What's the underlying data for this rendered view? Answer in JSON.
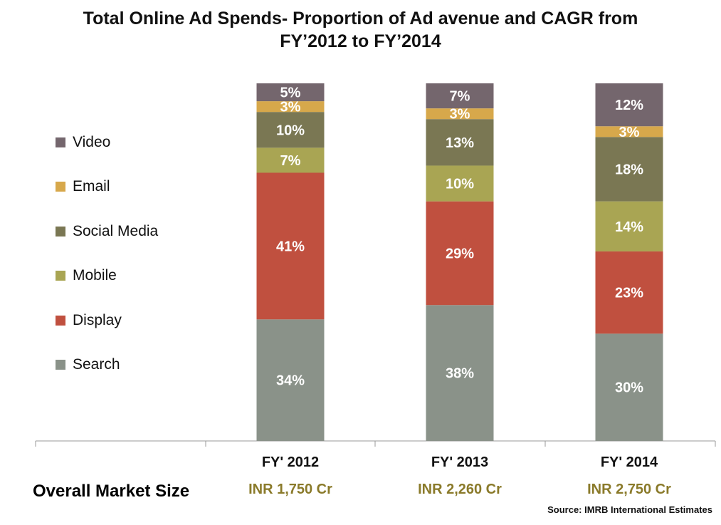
{
  "title_line1": "Total Online Ad Spends- Proportion of Ad avenue  and CAGR from",
  "title_line2": "FY’2012 to FY’2014",
  "chart_data": {
    "type": "bar",
    "stacked": true,
    "categories": [
      "FY' 2012",
      "FY' 2013",
      "FY' 2014"
    ],
    "unit": "%",
    "ylim": [
      0,
      100
    ],
    "grid": false,
    "legend_position": "left",
    "series": [
      {
        "name": "Search",
        "color": "#8a9289",
        "values": [
          34,
          38,
          30
        ],
        "labels": [
          "34%",
          "38%",
          "30%"
        ]
      },
      {
        "name": "Display",
        "color": "#c0503f",
        "values": [
          41,
          29,
          23
        ],
        "labels": [
          "41%",
          "29%",
          "23%"
        ]
      },
      {
        "name": "Mobile",
        "color": "#a9a553",
        "values": [
          7,
          10,
          14
        ],
        "labels": [
          "7%",
          "10%",
          "14%"
        ]
      },
      {
        "name": "Social Media",
        "color": "#7a7753",
        "values": [
          10,
          13,
          18
        ],
        "labels": [
          "10%",
          "13%",
          "18%"
        ]
      },
      {
        "name": "Email",
        "color": "#d7a84b",
        "values": [
          3,
          3,
          3
        ],
        "labels": [
          "3%",
          "3%",
          "3%"
        ]
      },
      {
        "name": "Video",
        "color": "#74666d",
        "values": [
          5,
          7,
          12
        ],
        "labels": [
          "5%",
          "7%",
          "12%"
        ]
      }
    ]
  },
  "legend_order": [
    "Video",
    "Email",
    "Social Media",
    "Mobile",
    "Display",
    "Search"
  ],
  "market": {
    "label": "Overall Market Size",
    "values": [
      "INR 1,750 Cr",
      "INR 2,260 Cr",
      "INR 2,750 Cr"
    ],
    "color": "#8a7a2a"
  },
  "source": "Source: IMRB International Estimates"
}
